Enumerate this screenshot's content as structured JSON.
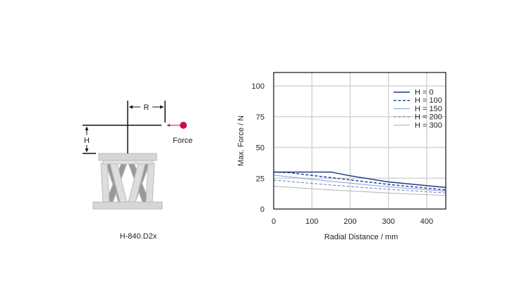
{
  "diagram": {
    "label_r": "R",
    "label_h": "H",
    "label_force": "Force",
    "caption": "H-840.D2x",
    "force_color": "#c8104f"
  },
  "chart_data": {
    "type": "line",
    "title": "",
    "xlabel": "Radial Distance / mm",
    "ylabel": "Max. Force / N",
    "xlim": [
      0,
      450
    ],
    "ylim": [
      0,
      100
    ],
    "xticks": [
      0,
      100,
      200,
      300,
      400
    ],
    "yticks": [
      0,
      25,
      50,
      75,
      100
    ],
    "grid": true,
    "legend_position": "top-right",
    "series": [
      {
        "name": "H = 0",
        "color": "#1a3a8a",
        "dash": "solid",
        "x": [
          0,
          150,
          200,
          300,
          450
        ],
        "y": [
          30,
          30,
          27,
          22,
          17.5
        ]
      },
      {
        "name": "H = 100",
        "color": "#1a3a8a",
        "dash": "dashed",
        "x": [
          0,
          40,
          150,
          300,
          450
        ],
        "y": [
          30,
          29.5,
          25.5,
          20,
          15.5
        ]
      },
      {
        "name": "H = 150",
        "color": "#8aa0d8",
        "dash": "solid",
        "x": [
          0,
          150,
          300,
          450
        ],
        "y": [
          27.5,
          22.5,
          18,
          14.5
        ]
      },
      {
        "name": "H = 200",
        "color": "#6f8ad0",
        "dash": "dashed",
        "x": [
          0,
          150,
          300,
          450
        ],
        "y": [
          23.5,
          19.5,
          16,
          13
        ]
      },
      {
        "name": "H = 300",
        "color": "#b4b4b4",
        "dash": "solid",
        "x": [
          0,
          150,
          300,
          450
        ],
        "y": [
          18.5,
          15.5,
          13,
          11
        ]
      }
    ]
  }
}
